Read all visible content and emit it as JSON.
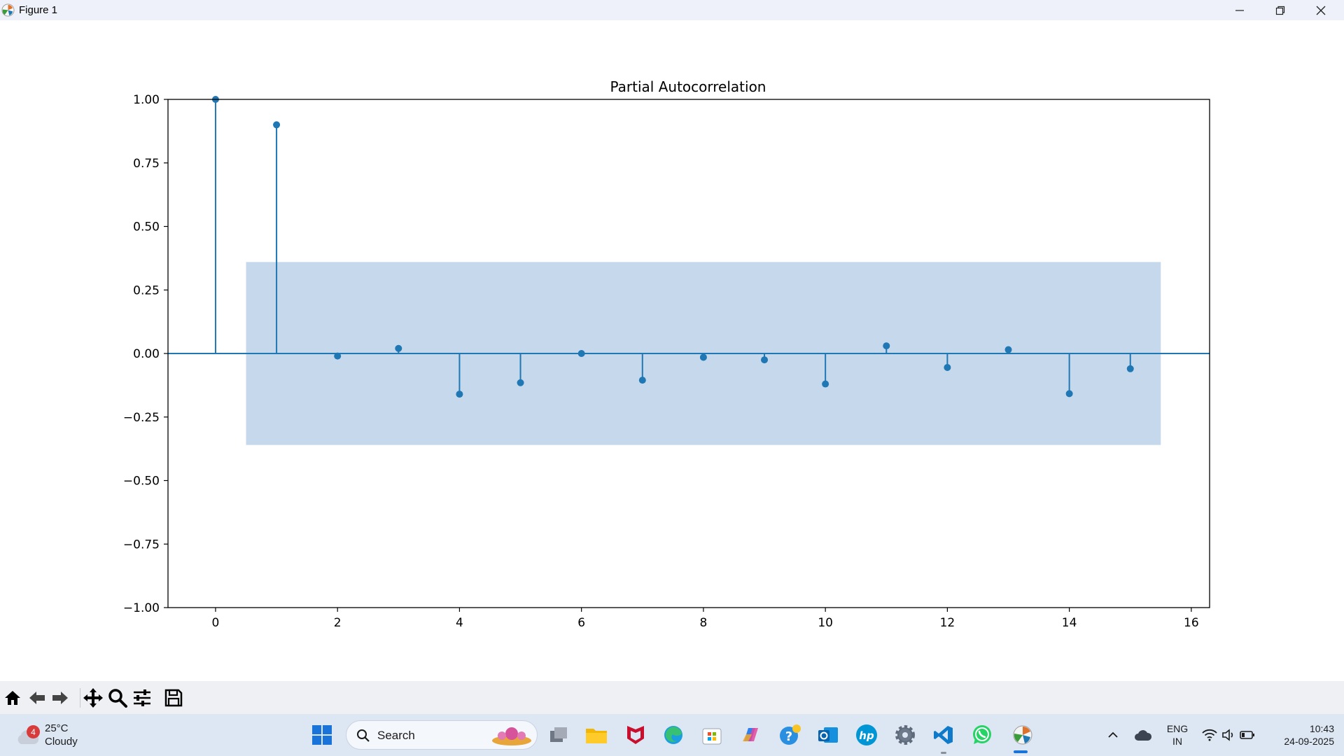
{
  "window": {
    "title": "Figure 1",
    "controls": [
      "minimize-icon",
      "restore-icon",
      "close-icon"
    ]
  },
  "chart_data": {
    "type": "stem",
    "title": "Partial Autocorrelation",
    "xlabel": "",
    "ylabel": "",
    "xlim": [
      -0.78,
      16.3
    ],
    "ylim": [
      -1.0,
      1.0
    ],
    "xticks": [
      0,
      2,
      4,
      6,
      8,
      10,
      12,
      14,
      16
    ],
    "yticks": [
      1.0,
      0.75,
      0.5,
      0.25,
      0.0,
      -0.25,
      -0.5,
      -0.75,
      -1.0
    ],
    "ytick_labels": [
      "1.00",
      "0.75",
      "0.50",
      "0.25",
      "0.00",
      "−0.25",
      "−0.50",
      "−0.75",
      "−1.00"
    ],
    "xtick_labels": [
      "0",
      "2",
      "4",
      "6",
      "8",
      "10",
      "12",
      "14",
      "16"
    ],
    "lags": [
      0,
      1,
      2,
      3,
      4,
      5,
      6,
      7,
      8,
      9,
      10,
      11,
      12,
      13,
      14,
      15
    ],
    "values": [
      1.0,
      0.9,
      -0.01,
      0.02,
      -0.16,
      -0.115,
      0.0,
      -0.105,
      -0.015,
      -0.025,
      -0.12,
      0.03,
      -0.055,
      0.015,
      -0.158,
      -0.06
    ],
    "confidence_band": {
      "x_range": [
        0.5,
        15.5
      ],
      "upper": 0.36,
      "lower": -0.36
    },
    "grid": false,
    "colors": {
      "stem": "#1f77b4",
      "band": "#c6d9ec"
    }
  },
  "toolbar": {
    "buttons": [
      "home-icon",
      "back-icon",
      "forward-icon",
      "pan-icon",
      "zoom-icon",
      "configure-icon",
      "save-icon"
    ]
  },
  "taskbar": {
    "weather": {
      "badge": "4",
      "temp": "25°C",
      "condition": "Cloudy"
    },
    "search_label": "Search",
    "language": {
      "line1": "ENG",
      "line2": "IN"
    },
    "clock": {
      "time": "10:43",
      "date": "24-09-2025"
    }
  }
}
